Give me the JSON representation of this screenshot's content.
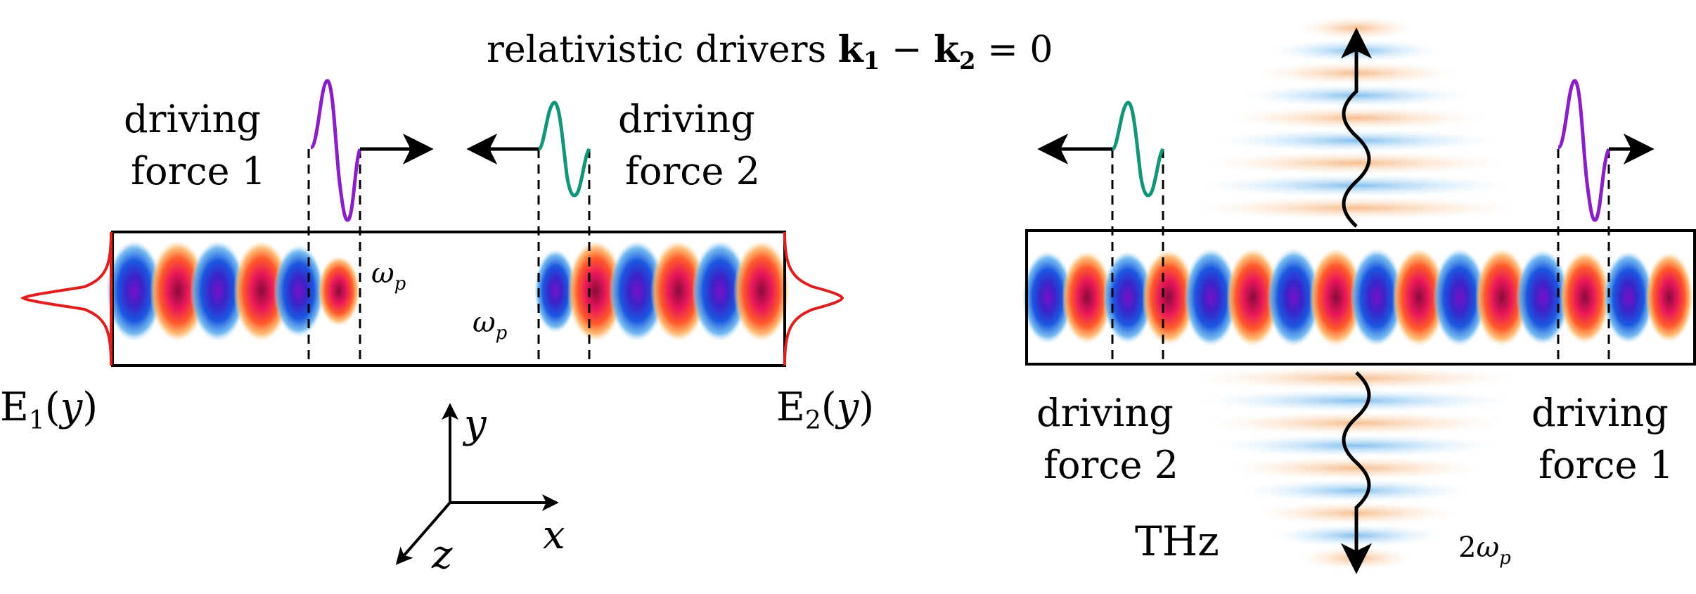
{
  "title": {
    "prefix": "relativistic drivers ",
    "k": "k",
    "sub1": "1",
    "minus": " − ",
    "sub2": "2",
    "rest": " = 0"
  },
  "left": {
    "driver1": [
      "driving",
      "force 1"
    ],
    "driver2": [
      "driving",
      "force 2"
    ],
    "omega": "ω",
    "omega_sub": "p",
    "e1": {
      "base": "E",
      "sub": "1",
      "arg": "(",
      "var": "y",
      "close": ")"
    },
    "e2": {
      "base": "E",
      "sub": "2",
      "arg": "(",
      "var": "y",
      "close": ")"
    },
    "axes": {
      "y": "y",
      "x": "x",
      "z": "z"
    }
  },
  "right": {
    "driver2": [
      "driving",
      "force 2"
    ],
    "driver1": [
      "driving",
      "force 1"
    ],
    "thz": "THz",
    "two_omega": {
      "coef": "2",
      "sym": "ω",
      "sub": "p"
    }
  },
  "colors": {
    "force1": "#8a1ec8",
    "force2": "#12967a",
    "profile": "#e01e1e",
    "positive_lobe": "#e8175a",
    "negative_lobe": "#3a24c8",
    "thz_warm": "#f4b27a",
    "thz_cool": "#6ab4ec"
  }
}
